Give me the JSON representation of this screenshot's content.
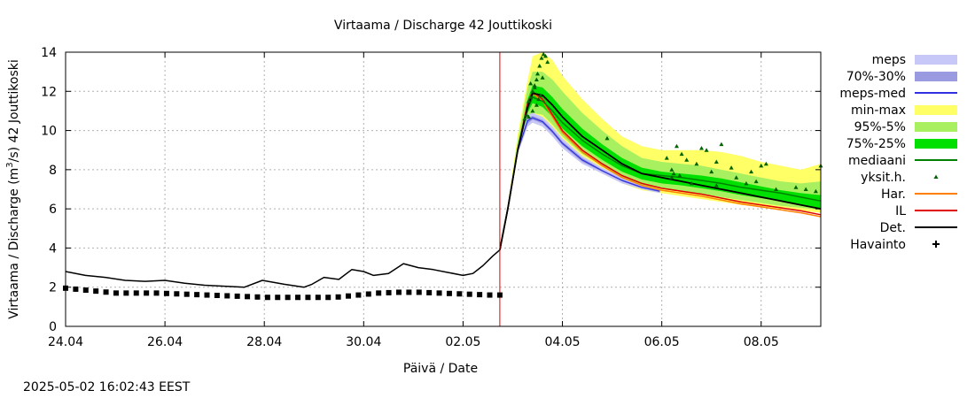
{
  "footer_timestamp": "2025-05-02 16:02:43 EEST",
  "chart_data": {
    "type": "line",
    "title": "Virtaama / Discharge  42 Jouttikoski",
    "xlabel": "Päivä / Date",
    "ylabel_prefix": "Virtaama / Discharge (m",
    "ylabel_sup": "3",
    "ylabel_suffix": "/s)  42 Jouttikoski",
    "xlim": [
      0,
      7.6
    ],
    "ylim": [
      0,
      14
    ],
    "grid": true,
    "legend_position": "right",
    "x_ticks": [
      {
        "value": 0,
        "label": "24.04"
      },
      {
        "value": 1,
        "label": "26.04"
      },
      {
        "value": 2,
        "label": "28.04"
      },
      {
        "value": 3,
        "label": "30.04"
      },
      {
        "value": 4,
        "label": "02.05"
      },
      {
        "value": 5,
        "label": "04.05"
      },
      {
        "value": 6,
        "label": "06.05"
      },
      {
        "value": 7,
        "label": "08.05"
      }
    ],
    "y_ticks": [
      {
        "value": 0,
        "label": "0"
      },
      {
        "value": 2,
        "label": "2"
      },
      {
        "value": 4,
        "label": "4"
      },
      {
        "value": 6,
        "label": "6"
      },
      {
        "value": 8,
        "label": "8"
      },
      {
        "value": 10,
        "label": "10"
      },
      {
        "value": 12,
        "label": "12"
      },
      {
        "value": 14,
        "label": "14"
      }
    ],
    "forecast_start_x": 4.37,
    "colors": {
      "meps": "#c8c8f8",
      "meps_70_30": "#9a9ae0",
      "meps_med": "#3030e0",
      "min_max": "#ffff66",
      "p95_5": "#a8f060",
      "p75_25": "#00e000",
      "mediaani": "#008000",
      "yksit": "#006400",
      "har": "#ff8000",
      "il": "#e00000",
      "det": "#000000",
      "havainto": "#000000",
      "forecast_line": "#e00000",
      "grid": "#b0b0b0"
    },
    "legend": [
      {
        "key": "meps",
        "label": "meps",
        "style": "band"
      },
      {
        "key": "meps_70_30",
        "label": "70%-30%",
        "style": "band"
      },
      {
        "key": "meps_med",
        "label": "meps-med",
        "style": "line"
      },
      {
        "key": "min_max",
        "label": "min-max",
        "style": "band"
      },
      {
        "key": "p95_5",
        "label": "95%-5%",
        "style": "band"
      },
      {
        "key": "p75_25",
        "label": "75%-25%",
        "style": "band"
      },
      {
        "key": "mediaani",
        "label": "mediaani",
        "style": "line"
      },
      {
        "key": "yksit",
        "label": "yksit.h.",
        "style": "dot"
      },
      {
        "key": "har",
        "label": "Har.",
        "style": "line"
      },
      {
        "key": "il",
        "label": "IL",
        "style": "line"
      },
      {
        "key": "det",
        "label": "Det.",
        "style": "line"
      },
      {
        "key": "havainto",
        "label": "Havainto",
        "style": "plus"
      }
    ],
    "series": {
      "det_history": {
        "x": [
          0,
          0.2,
          0.4,
          0.6,
          0.8,
          1.0,
          1.2,
          1.4,
          1.6,
          1.8,
          1.98,
          2.2,
          2.4,
          2.48,
          2.6,
          2.75,
          2.88,
          3.0,
          3.1,
          3.25,
          3.4,
          3.55,
          3.7,
          3.85,
          4.0,
          4.1,
          4.2,
          4.3,
          4.37
        ],
        "y": [
          2.8,
          2.6,
          2.5,
          2.35,
          2.3,
          2.35,
          2.2,
          2.1,
          2.05,
          2.0,
          2.35,
          2.15,
          2.0,
          2.15,
          2.5,
          2.4,
          2.9,
          2.8,
          2.6,
          2.7,
          3.2,
          3.0,
          2.9,
          2.75,
          2.6,
          2.7,
          3.1,
          3.6,
          3.9
        ]
      },
      "havainto": {
        "x_start": 0,
        "x_end": 4.37,
        "step": 0.0521,
        "y": [
          1.95,
          1.9,
          1.85,
          1.8,
          1.75,
          1.7,
          1.7,
          1.7,
          1.7,
          1.7,
          1.68,
          1.66,
          1.64,
          1.62,
          1.6,
          1.58,
          1.56,
          1.54,
          1.52,
          1.5,
          1.48,
          1.48,
          1.48,
          1.48,
          1.48,
          1.48,
          1.48,
          1.5,
          1.55,
          1.6,
          1.65,
          1.7,
          1.72,
          1.74,
          1.74,
          1.74,
          1.72,
          1.7,
          1.68,
          1.66,
          1.64,
          1.62,
          1.6,
          1.6
        ]
      },
      "forecast_x": [
        4.37,
        4.45,
        4.55,
        4.65,
        4.7,
        4.8,
        4.9,
        5.0,
        5.2,
        5.4,
        5.6,
        5.8,
        6.0,
        6.2,
        6.4,
        6.6,
        6.8,
        7.0,
        7.2,
        7.4,
        7.6
      ],
      "det": [
        3.9,
        6.0,
        9.0,
        11.2,
        11.9,
        11.8,
        11.3,
        10.7,
        9.7,
        9.0,
        8.3,
        7.8,
        7.6,
        7.4,
        7.2,
        7.0,
        6.8,
        6.6,
        6.4,
        6.2,
        6.0
      ],
      "mediaani": [
        3.9,
        6.0,
        9.0,
        11.1,
        11.7,
        11.5,
        11.0,
        10.4,
        9.5,
        8.8,
        8.2,
        7.8,
        7.7,
        7.6,
        7.45,
        7.3,
        7.1,
        6.95,
        6.8,
        6.6,
        6.4
      ],
      "il": [
        3.9,
        6.0,
        9.0,
        11.4,
        12.0,
        11.6,
        10.8,
        10.0,
        9.0,
        8.3,
        7.7,
        7.3,
        7.05,
        6.9,
        6.75,
        6.55,
        6.35,
        6.2,
        6.05,
        5.9,
        5.7
      ],
      "har": [
        3.9,
        6.0,
        9.0,
        11.3,
        11.9,
        11.5,
        10.7,
        9.9,
        8.9,
        8.2,
        7.6,
        7.2,
        6.95,
        6.8,
        6.65,
        6.45,
        6.25,
        6.1,
        5.95,
        5.8,
        5.6
      ],
      "min_max": {
        "low": [
          3.9,
          6.0,
          8.8,
          10.2,
          10.4,
          10.2,
          9.7,
          9.2,
          8.4,
          7.8,
          7.3,
          6.95,
          6.8,
          6.65,
          6.5,
          6.35,
          6.2,
          6.1,
          6.0,
          5.9,
          5.8
        ],
        "high": [
          3.9,
          6.2,
          9.8,
          12.6,
          13.8,
          14.0,
          13.6,
          12.8,
          11.6,
          10.6,
          9.7,
          9.2,
          9.0,
          9.0,
          9.0,
          8.9,
          8.7,
          8.4,
          8.2,
          8.0,
          8.3
        ]
      },
      "p95_5": {
        "low": [
          3.9,
          6.0,
          8.9,
          10.5,
          10.9,
          10.8,
          10.3,
          9.7,
          8.8,
          8.2,
          7.6,
          7.2,
          7.05,
          6.9,
          6.75,
          6.6,
          6.45,
          6.3,
          6.15,
          6.05,
          5.95
        ],
        "high": [
          3.9,
          6.1,
          9.5,
          12.2,
          13.0,
          13.0,
          12.6,
          12.0,
          10.9,
          10.0,
          9.2,
          8.6,
          8.4,
          8.3,
          8.2,
          8.0,
          7.8,
          7.6,
          7.4,
          7.3,
          7.4
        ]
      },
      "p75_25": {
        "low": [
          3.9,
          6.0,
          9.0,
          10.9,
          11.4,
          11.2,
          10.7,
          10.1,
          9.2,
          8.5,
          7.9,
          7.5,
          7.3,
          7.2,
          7.05,
          6.9,
          6.7,
          6.55,
          6.4,
          6.2,
          6.0
        ],
        "high": [
          3.9,
          6.0,
          9.2,
          11.6,
          12.3,
          12.2,
          11.7,
          11.1,
          10.1,
          9.3,
          8.6,
          8.1,
          7.9,
          7.8,
          7.7,
          7.55,
          7.35,
          7.15,
          6.95,
          6.8,
          6.7
        ]
      },
      "meps_x": [
        4.37,
        4.45,
        4.55,
        4.65,
        4.7,
        4.8,
        4.9,
        5.0,
        5.2,
        5.4,
        5.6,
        5.8,
        5.98
      ],
      "meps_band": {
        "low": [
          3.9,
          5.9,
          8.8,
          10.2,
          10.4,
          10.2,
          9.7,
          9.1,
          8.3,
          7.8,
          7.3,
          7.0,
          6.8
        ],
        "high": [
          3.9,
          6.0,
          9.1,
          10.8,
          10.9,
          10.7,
          10.2,
          9.6,
          8.7,
          8.1,
          7.6,
          7.2,
          7.0
        ]
      },
      "meps_70_30": {
        "low": [
          3.9,
          5.95,
          8.9,
          10.35,
          10.55,
          10.35,
          9.85,
          9.25,
          8.4,
          7.9,
          7.4,
          7.05,
          6.85
        ],
        "high": [
          3.9,
          6.0,
          9.05,
          10.65,
          10.75,
          10.55,
          10.05,
          9.45,
          8.6,
          8.0,
          7.5,
          7.15,
          6.95
        ]
      },
      "meps_med": [
        3.9,
        5.98,
        8.97,
        10.5,
        10.65,
        10.45,
        9.95,
        9.35,
        8.5,
        7.95,
        7.45,
        7.1,
        6.9
      ],
      "yksit": {
        "x": [
          4.62,
          4.64,
          4.66,
          4.68,
          4.7,
          4.72,
          4.74,
          4.75,
          4.77,
          4.79,
          4.81,
          4.66,
          4.7,
          4.74,
          4.78,
          4.83,
          4.68,
          4.72,
          4.76,
          4.8,
          4.85,
          5.45,
          6.05,
          6.1,
          6.15,
          6.2,
          6.12,
          6.18,
          6.25,
          6.35,
          6.4,
          6.45,
          6.55,
          6.6,
          6.5,
          6.7,
          6.75,
          6.9,
          7.0,
          7.05,
          6.95,
          7.35,
          7.45,
          7.55,
          7.6,
          6.1,
          6.3,
          6.55,
          6.85,
          7.15
        ],
        "y": [
          10.6,
          10.8,
          11.5,
          11.7,
          12.0,
          12.3,
          12.6,
          12.9,
          13.3,
          13.7,
          13.9,
          10.7,
          11.0,
          11.3,
          11.8,
          13.8,
          12.4,
          12.2,
          11.6,
          12.7,
          13.5,
          9.6,
          8.6,
          8.0,
          9.2,
          8.8,
          7.8,
          7.7,
          8.5,
          8.3,
          9.1,
          9.0,
          8.4,
          9.3,
          7.9,
          8.1,
          7.6,
          7.9,
          8.2,
          8.3,
          7.4,
          7.1,
          7.0,
          6.9,
          8.2,
          7.6,
          7.3,
          7.2,
          7.3,
          7.0
        ]
      }
    }
  }
}
